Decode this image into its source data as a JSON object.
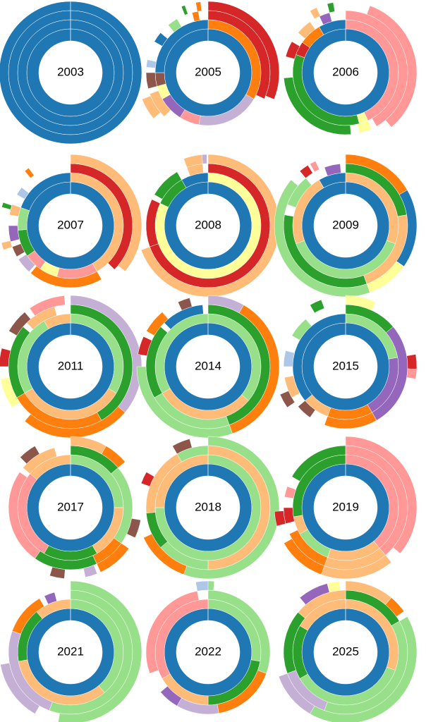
{
  "chart_data": [
    {
      "type": "sunburst",
      "label": "2003",
      "rings": [
        [
          [
            0,
            360,
            "#1f77b4"
          ]
        ],
        [
          [
            0,
            360,
            "#1f77b4"
          ]
        ],
        [
          [
            0,
            360,
            "#1f77b4"
          ]
        ],
        [
          [
            0,
            360,
            "#1f77b4"
          ]
        ]
      ]
    },
    {
      "type": "sunburst",
      "label": "2005",
      "rings": [
        [
          [
            0,
            360,
            "#1f77b4"
          ]
        ],
        [
          [
            0,
            120,
            "#ff7f0e"
          ],
          [
            120,
            70,
            "#c5b0d5"
          ],
          [
            190,
            22,
            "#ff9896"
          ],
          [
            212,
            28,
            "#9467bd"
          ],
          [
            240,
            15,
            "#ffff99"
          ],
          [
            255,
            15,
            "#8c564b"
          ],
          [
            270,
            90,
            "#1f77b4"
          ]
        ],
        [
          [
            0,
            115,
            "#d62728"
          ],
          [
            225,
            25,
            "#ffbb78"
          ],
          [
            255,
            15,
            "#8c564b"
          ],
          [
            275,
            7,
            "#aec7e8"
          ],
          [
            300,
            10,
            "#1f77b4"
          ],
          [
            320,
            10,
            "#98df8a"
          ],
          [
            345,
            6,
            "#ff7f0e"
          ]
        ],
        [
          [
            0,
            112,
            "#d62728"
          ],
          [
            230,
            18,
            "#ffbb78"
          ],
          [
            338,
            3,
            "#2ca02c"
          ],
          [
            350,
            4,
            "#ff7f0e"
          ]
        ]
      ]
    },
    {
      "type": "sunburst",
      "label": "2006",
      "rings": [
        [
          [
            0,
            360,
            "#1f77b4"
          ]
        ],
        [
          [
            0,
            155,
            "#ff9896"
          ],
          [
            155,
            10,
            "#ffff99"
          ],
          [
            165,
            125,
            "#2ca02c"
          ],
          [
            290,
            15,
            "#d62728"
          ],
          [
            305,
            25,
            "#ff7f0e"
          ],
          [
            330,
            30,
            "#1f77b4"
          ]
        ],
        [
          [
            0,
            150,
            "#ff9896"
          ],
          [
            155,
            12,
            "#ffff99"
          ],
          [
            175,
            90,
            "#2ca02c"
          ],
          [
            285,
            15,
            "#d62728"
          ],
          [
            310,
            15,
            "#ffbb78"
          ],
          [
            335,
            10,
            "#9467bd"
          ]
        ],
        [
          [
            20,
            120,
            "#ff9896"
          ],
          [
            330,
            6,
            "#ffbb78"
          ],
          [
            345,
            5,
            "#2ca02c"
          ]
        ]
      ]
    },
    {
      "type": "sunburst",
      "label": "2007",
      "rings": [
        [
          [
            0,
            360,
            "#1f77b4"
          ]
        ],
        [
          [
            0,
            150,
            "#ffbb78"
          ],
          [
            150,
            45,
            "#ff9896"
          ],
          [
            195,
            20,
            "#ffff99"
          ],
          [
            215,
            20,
            "#ff9896"
          ],
          [
            235,
            30,
            "#2ca02c"
          ],
          [
            265,
            25,
            "#98df8a"
          ],
          [
            290,
            70,
            "#1f77b4"
          ]
        ],
        [
          [
            0,
            135,
            "#d62728"
          ],
          [
            150,
            70,
            "#ff7f0e"
          ],
          [
            222,
            15,
            "#c5b0d5"
          ],
          [
            240,
            10,
            "#8c564b"
          ],
          [
            255,
            15,
            "#9467bd"
          ],
          [
            280,
            10,
            "#ffbb78"
          ],
          [
            300,
            8,
            "#aec7e8"
          ]
        ],
        [
          [
            0,
            130,
            "#ffbb78"
          ],
          [
            250,
            6,
            "#ffbb78"
          ],
          [
            285,
            4,
            "#2ca02c"
          ],
          [
            320,
            4,
            "#ff7f0e"
          ]
        ]
      ]
    },
    {
      "type": "sunburst",
      "label": "2008",
      "rings": [
        [
          [
            0,
            360,
            "#1f77b4"
          ]
        ],
        [
          [
            0,
            295,
            "#ffff99"
          ],
          [
            295,
            35,
            "#2ca02c"
          ],
          [
            330,
            30,
            "#1f77b4"
          ]
        ],
        [
          [
            0,
            250,
            "#d62728"
          ],
          [
            250,
            45,
            "#d62728"
          ],
          [
            300,
            30,
            "#2ca02c"
          ],
          [
            340,
            15,
            "#ffbb78"
          ]
        ],
        [
          [
            0,
            250,
            "#ffbb78"
          ],
          [
            340,
            15,
            "#ffbb78"
          ],
          [
            355,
            4,
            "#c5b0d5"
          ]
        ]
      ]
    },
    {
      "type": "sunburst",
      "label": "2009",
      "rings": [
        [
          [
            0,
            360,
            "#1f77b4"
          ]
        ],
        [
          [
            0,
            110,
            "#ffbb78"
          ],
          [
            110,
            140,
            "#98df8a"
          ],
          [
            250,
            80,
            "#ffbb78"
          ],
          [
            330,
            30,
            "#1f77b4"
          ]
        ],
        [
          [
            0,
            80,
            "#2ca02c"
          ],
          [
            80,
            80,
            "#ffbb78"
          ],
          [
            160,
            120,
            "#2ca02c"
          ],
          [
            290,
            30,
            "#98df8a"
          ],
          [
            340,
            15,
            "#9467bd"
          ]
        ],
        [
          [
            0,
            60,
            "#ff7f0e"
          ],
          [
            60,
            65,
            "#1f77b4"
          ],
          [
            125,
            35,
            "#ffff99"
          ],
          [
            160,
            150,
            "#98df8a"
          ],
          [
            320,
            8,
            "#d62728"
          ],
          [
            330,
            5,
            "#ff9896"
          ]
        ]
      ]
    },
    {
      "type": "sunburst",
      "label": "2011",
      "rings": [
        [
          [
            0,
            360,
            "#1f77b4"
          ]
        ],
        [
          [
            0,
            120,
            "#98df8a"
          ],
          [
            120,
            120,
            "#ffbb78"
          ],
          [
            240,
            90,
            "#98df8a"
          ],
          [
            330,
            30,
            "#ffbb78"
          ]
        ],
        [
          [
            0,
            150,
            "#2ca02c"
          ],
          [
            150,
            90,
            "#ff7f0e"
          ],
          [
            240,
            70,
            "#2ca02c"
          ],
          [
            315,
            30,
            "#ffbb78"
          ]
        ],
        [
          [
            0,
            130,
            "#c5b0d5"
          ],
          [
            130,
            90,
            "#ff7f0e"
          ],
          [
            235,
            25,
            "#ffff99"
          ],
          [
            270,
            15,
            "#d62728"
          ],
          [
            300,
            20,
            "#8c564b"
          ],
          [
            325,
            30,
            "#ff9896"
          ]
        ]
      ]
    },
    {
      "type": "sunburst",
      "label": "2014",
      "rings": [
        [
          [
            0,
            360,
            "#1f77b4"
          ]
        ],
        [
          [
            0,
            130,
            "#98df8a"
          ],
          [
            130,
            110,
            "#ffbb78"
          ],
          [
            240,
            120,
            "#98df8a"
          ]
        ],
        [
          [
            0,
            160,
            "#2ca02c"
          ],
          [
            160,
            80,
            "#98df8a"
          ],
          [
            240,
            70,
            "#2ca02c"
          ],
          [
            315,
            40,
            "#1f77b4"
          ]
        ],
        [
          [
            0,
            30,
            "#c5b0d5"
          ],
          [
            30,
            130,
            "#ff7f0e"
          ],
          [
            160,
            110,
            "#98df8a"
          ],
          [
            280,
            15,
            "#d62728"
          ],
          [
            300,
            20,
            "#ff7f0e"
          ],
          [
            335,
            10,
            "#8c564b"
          ]
        ]
      ]
    },
    {
      "type": "sunburst",
      "label": "2015",
      "rings": [
        [
          [
            0,
            360,
            "#1f77b4"
          ]
        ],
        [
          [
            0,
            80,
            "#98df8a"
          ],
          [
            80,
            70,
            "#9467bd"
          ],
          [
            150,
            50,
            "#ff7f0e"
          ],
          [
            200,
            30,
            "#ffbb78"
          ],
          [
            230,
            130,
            "#1f77b4"
          ]
        ],
        [
          [
            0,
            50,
            "#2ca02c"
          ],
          [
            50,
            100,
            "#9467bd"
          ],
          [
            150,
            50,
            "#ff7f0e"
          ],
          [
            215,
            15,
            "#8c564b"
          ],
          [
            240,
            20,
            "#ffbb78"
          ],
          [
            270,
            15,
            "#aec7e8"
          ],
          [
            300,
            20,
            "#98df8a"
          ]
        ],
        [
          [
            0,
            25,
            "#ffff99"
          ],
          [
            80,
            12,
            "#d62728"
          ],
          [
            92,
            8,
            "#ff9896"
          ],
          [
            235,
            12,
            "#8c564b"
          ],
          [
            330,
            10,
            "#2ca02c"
          ]
        ]
      ]
    },
    {
      "type": "sunburst",
      "label": "2017",
      "rings": [
        [
          [
            0,
            360,
            "#1f77b4"
          ]
        ],
        [
          [
            0,
            90,
            "#98df8a"
          ],
          [
            90,
            60,
            "#ffbb78"
          ],
          [
            150,
            60,
            "#2ca02c"
          ],
          [
            210,
            100,
            "#ff9896"
          ],
          [
            310,
            50,
            "#ffbb78"
          ]
        ],
        [
          [
            0,
            50,
            "#2ca02c"
          ],
          [
            50,
            75,
            "#98df8a"
          ],
          [
            125,
            30,
            "#ff7f0e"
          ],
          [
            155,
            60,
            "#2ca02c"
          ],
          [
            215,
            90,
            "#ff9896"
          ],
          [
            310,
            35,
            "#ffbb78"
          ]
        ],
        [
          [
            0,
            30,
            "#ffbb78"
          ],
          [
            30,
            20,
            "#ff7f0e"
          ],
          [
            100,
            15,
            "#8c564b"
          ],
          [
            125,
            30,
            "#ff7f0e"
          ],
          [
            158,
            10,
            "#c5b0d5"
          ],
          [
            185,
            12,
            "#8c564b"
          ],
          [
            315,
            15,
            "#8c564b"
          ]
        ]
      ]
    },
    {
      "type": "sunburst",
      "label": "2018",
      "rings": [
        [
          [
            0,
            360,
            "#1f77b4"
          ]
        ],
        [
          [
            0,
            270,
            "#98df8a"
          ],
          [
            270,
            90,
            "#ffbb78"
          ]
        ],
        [
          [
            0,
            180,
            "#ffbb78"
          ],
          [
            180,
            50,
            "#98df8a"
          ],
          [
            230,
            35,
            "#2ca02c"
          ],
          [
            265,
            65,
            "#ffbb78"
          ],
          [
            330,
            30,
            "#98df8a"
          ]
        ],
        [
          [
            0,
            200,
            "#98df8a"
          ],
          [
            200,
            45,
            "#ff7f0e"
          ],
          [
            290,
            10,
            "#d62728"
          ],
          [
            330,
            15,
            "#8c564b"
          ]
        ]
      ]
    },
    {
      "type": "sunburst",
      "label": "2019",
      "rings": [
        [
          [
            0,
            360,
            "#1f77b4"
          ]
        ],
        [
          [
            0,
            140,
            "#ff9896"
          ],
          [
            140,
            60,
            "#ffbb78"
          ],
          [
            200,
            40,
            "#98df8a"
          ],
          [
            240,
            20,
            "#ffbb78"
          ],
          [
            260,
            100,
            "#2ca02c"
          ]
        ],
        [
          [
            0,
            140,
            "#ff9896"
          ],
          [
            140,
            60,
            "#ffbb78"
          ],
          [
            200,
            45,
            "#ff7f0e"
          ],
          [
            255,
            15,
            "#d62728"
          ],
          [
            280,
            10,
            "#ff9896"
          ],
          [
            300,
            60,
            "#2ca02c"
          ]
        ],
        [
          [
            0,
            130,
            "#ff9896"
          ],
          [
            140,
            60,
            "#ffbb78"
          ],
          [
            200,
            40,
            "#ff7f0e"
          ],
          [
            255,
            12,
            "#d62728"
          ]
        ]
      ]
    },
    {
      "type": "sunburst",
      "label": "2021",
      "rings": [
        [
          [
            0,
            360,
            "#1f77b4"
          ]
        ],
        [
          [
            0,
            140,
            "#98df8a"
          ],
          [
            140,
            120,
            "#ffbb78"
          ],
          [
            260,
            60,
            "#2ca02c"
          ],
          [
            320,
            40,
            "#ffbb78"
          ]
        ],
        [
          [
            0,
            200,
            "#98df8a"
          ],
          [
            200,
            90,
            "#c5b0d5"
          ],
          [
            290,
            40,
            "#ff7f0e"
          ],
          [
            335,
            10,
            "#9467bd"
          ]
        ],
        [
          [
            0,
            190,
            "#98df8a"
          ],
          [
            210,
            50,
            "#c5b0d5"
          ]
        ]
      ]
    },
    {
      "type": "sunburst",
      "label": "2022",
      "rings": [
        [
          [
            0,
            360,
            "#1f77b4"
          ]
        ],
        [
          [
            0,
            100,
            "#98df8a"
          ],
          [
            100,
            80,
            "#2ca02c"
          ],
          [
            180,
            60,
            "#ffbb78"
          ],
          [
            240,
            120,
            "#ff9896"
          ]
        ],
        [
          [
            0,
            110,
            "#98df8a"
          ],
          [
            110,
            60,
            "#ff7f0e"
          ],
          [
            170,
            40,
            "#c5b0d5"
          ],
          [
            210,
            20,
            "#9467bd"
          ],
          [
            250,
            100,
            "#ff9896"
          ]
        ],
        [
          [
            350,
            15,
            "#aec7e8"
          ],
          [
            0,
            5,
            "#98df8a"
          ]
        ]
      ]
    },
    {
      "type": "sunburst",
      "label": "2025",
      "rings": [
        [
          [
            0,
            360,
            "#1f77b4"
          ]
        ],
        [
          [
            0,
            110,
            "#ffbb78"
          ],
          [
            110,
            130,
            "#98df8a"
          ],
          [
            240,
            60,
            "#2ca02c"
          ],
          [
            300,
            60,
            "#ffbb78"
          ]
        ],
        [
          [
            0,
            60,
            "#2ca02c"
          ],
          [
            60,
            140,
            "#98df8a"
          ],
          [
            200,
            50,
            "#c5b0d5"
          ],
          [
            250,
            60,
            "#2ca02c"
          ],
          [
            310,
            50,
            "#ffbb78"
          ]
        ],
        [
          [
            0,
            40,
            "#ffbb78"
          ],
          [
            40,
            15,
            "#ff7f0e"
          ],
          [
            60,
            150,
            "#98df8a"
          ],
          [
            210,
            40,
            "#c5b0d5"
          ],
          [
            320,
            25,
            "#9467bd"
          ],
          [
            345,
            10,
            "#ffff99"
          ]
        ]
      ]
    }
  ]
}
